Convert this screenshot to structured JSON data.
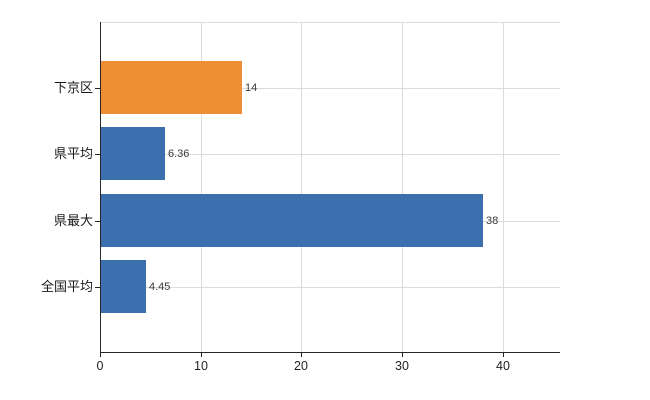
{
  "chart_data": {
    "type": "bar",
    "orientation": "horizontal",
    "title": "",
    "xlabel": "",
    "ylabel": "",
    "categories": [
      "下京区",
      "県平均",
      "県最大",
      "全国平均"
    ],
    "values": [
      14,
      6.36,
      38,
      4.45
    ],
    "value_labels": [
      "14",
      "6.36",
      "38",
      "4.45"
    ],
    "bar_colors": [
      "#EE8F35",
      "#3B6FAE",
      "#3B6FAE",
      "#3B6FAE"
    ],
    "xticks": [
      0,
      10,
      20,
      30,
      40
    ],
    "xtick_labels": [
      "0",
      "10",
      "20",
      "30",
      "40"
    ],
    "xlim": [
      0,
      45.7
    ],
    "grid": true,
    "legend_position": "none"
  },
  "colors": {
    "bar_orange": "#EE8F35",
    "bar_blue": "#3B6FAE",
    "axis": "#262626",
    "grid": "#dcdcdc",
    "category_label": "#1a1a1a",
    "value_label": "#3a3a3a",
    "background": "#ffffff"
  }
}
